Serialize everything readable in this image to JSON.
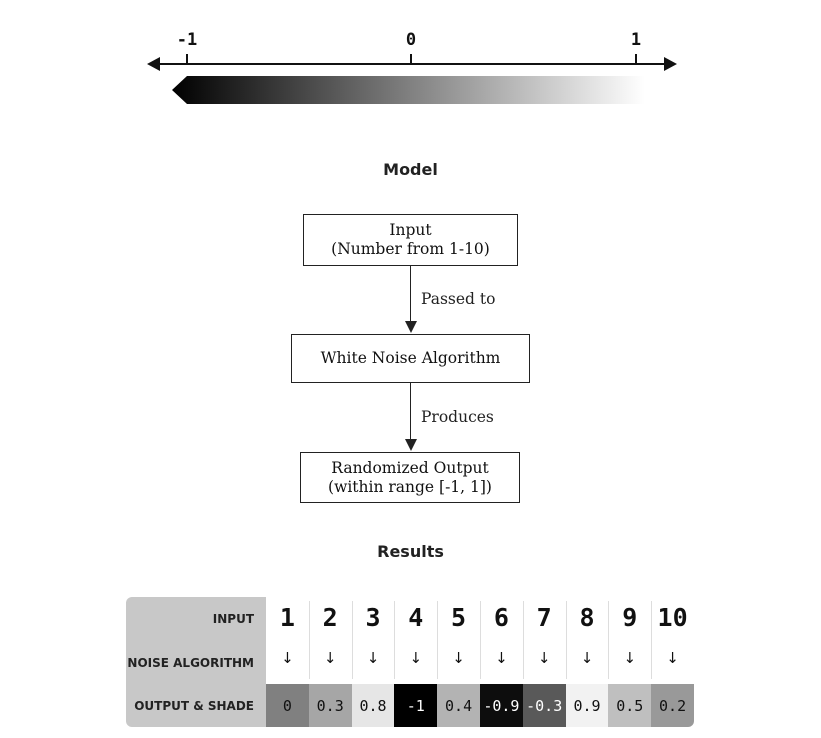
{
  "number_line": {
    "ticks": [
      {
        "value": -1,
        "label": "-1"
      },
      {
        "value": 0,
        "label": "0"
      },
      {
        "value": 1,
        "label": "1"
      }
    ],
    "gradient": {
      "from_color": "#000000",
      "to_color": "#ffffff"
    }
  },
  "model": {
    "title": "Model",
    "nodes": [
      {
        "id": "input",
        "line1": "Input",
        "line2": "(Number from 1-10)"
      },
      {
        "id": "algorithm",
        "line1": "White Noise Algorithm",
        "line2": ""
      },
      {
        "id": "output",
        "line1": "Randomized Output",
        "line2": "(within range [-1, 1])"
      }
    ],
    "edges": [
      {
        "from": "input",
        "to": "algorithm",
        "label": "Passed to"
      },
      {
        "from": "algorithm",
        "to": "output",
        "label": "Produces"
      }
    ]
  },
  "results": {
    "title": "Results",
    "row_labels": {
      "input": "INPUT",
      "algorithm": "NOISE ALGORITHM",
      "output": "OUTPUT & SHADE"
    },
    "arrow_glyph": "↓",
    "columns": [
      {
        "input": "1",
        "output": "0",
        "value": 0
      },
      {
        "input": "2",
        "output": "0.3",
        "value": 0.3
      },
      {
        "input": "3",
        "output": "0.8",
        "value": 0.8
      },
      {
        "input": "4",
        "output": "-1",
        "value": -1
      },
      {
        "input": "5",
        "output": "0.4",
        "value": 0.4
      },
      {
        "input": "6",
        "output": "-0.9",
        "value": -0.9
      },
      {
        "input": "7",
        "output": "-0.3",
        "value": -0.3
      },
      {
        "input": "8",
        "output": "0.9",
        "value": 0.9
      },
      {
        "input": "9",
        "output": "0.5",
        "value": 0.5
      },
      {
        "input": "10",
        "output": "0.2",
        "value": 0.2
      }
    ]
  }
}
